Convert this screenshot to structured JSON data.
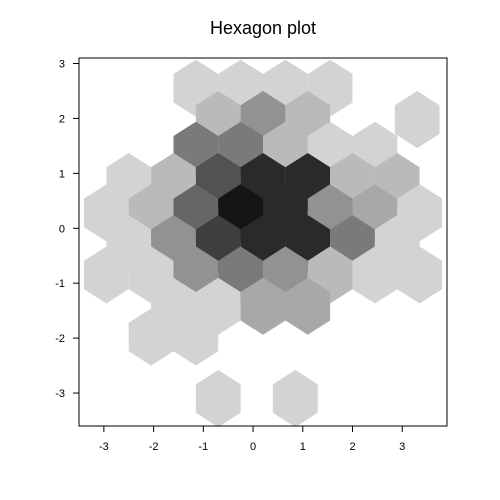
{
  "chart_data": {
    "type": "heatmap",
    "subtype": "hexbin",
    "title": "Hexagon plot",
    "xlabel": "",
    "ylabel": "",
    "xlim": [
      -3.5,
      3.9
    ],
    "ylim": [
      -3.6,
      3.1
    ],
    "x_ticks": [
      -3,
      -2,
      -1,
      0,
      1,
      2,
      3
    ],
    "y_ticks": [
      -3,
      -2,
      -1,
      0,
      1,
      2,
      3
    ],
    "grid": false,
    "legend": "none",
    "hex_width": 0.9,
    "colors": [
      "#d3d3d3",
      "#bababa",
      "#a8a8a8",
      "#929292",
      "#7a7a7a",
      "#666666",
      "#525252",
      "#3e3e3e",
      "#2a2a2a",
      "#151515"
    ],
    "cells": [
      {
        "x": -1.15,
        "y": 2.55,
        "level": 0
      },
      {
        "x": -0.25,
        "y": 2.55,
        "level": 0
      },
      {
        "x": 0.65,
        "y": 2.55,
        "level": 0
      },
      {
        "x": 1.55,
        "y": 2.55,
        "level": 0
      },
      {
        "x": -0.7,
        "y": 1.98,
        "level": 1
      },
      {
        "x": 0.2,
        "y": 1.98,
        "level": 3
      },
      {
        "x": 1.1,
        "y": 1.98,
        "level": 1
      },
      {
        "x": 3.3,
        "y": 1.98,
        "level": 0
      },
      {
        "x": -1.15,
        "y": 1.42,
        "level": 4
      },
      {
        "x": -0.25,
        "y": 1.42,
        "level": 4
      },
      {
        "x": 0.65,
        "y": 1.42,
        "level": 1
      },
      {
        "x": 1.55,
        "y": 1.42,
        "level": 0
      },
      {
        "x": 2.45,
        "y": 1.42,
        "level": 0
      },
      {
        "x": -2.5,
        "y": 0.85,
        "level": 0
      },
      {
        "x": -1.6,
        "y": 0.85,
        "level": 1
      },
      {
        "x": -0.7,
        "y": 0.85,
        "level": 6
      },
      {
        "x": 0.2,
        "y": 0.85,
        "level": 8
      },
      {
        "x": 1.1,
        "y": 0.85,
        "level": 8
      },
      {
        "x": 2.0,
        "y": 0.85,
        "level": 1
      },
      {
        "x": 2.9,
        "y": 0.85,
        "level": 1
      },
      {
        "x": -2.95,
        "y": 0.28,
        "level": 0
      },
      {
        "x": -2.05,
        "y": 0.28,
        "level": 1
      },
      {
        "x": -1.15,
        "y": 0.28,
        "level": 5
      },
      {
        "x": -0.25,
        "y": 0.28,
        "level": 9
      },
      {
        "x": 0.65,
        "y": 0.28,
        "level": 8
      },
      {
        "x": 1.55,
        "y": 0.28,
        "level": 3
      },
      {
        "x": 2.45,
        "y": 0.28,
        "level": 2
      },
      {
        "x": 3.35,
        "y": 0.28,
        "level": 0
      },
      {
        "x": -2.5,
        "y": -0.28,
        "level": 0
      },
      {
        "x": -1.6,
        "y": -0.28,
        "level": 3
      },
      {
        "x": -0.7,
        "y": -0.28,
        "level": 7
      },
      {
        "x": 0.2,
        "y": -0.28,
        "level": 8
      },
      {
        "x": 1.1,
        "y": -0.28,
        "level": 8
      },
      {
        "x": 2.0,
        "y": -0.28,
        "level": 4
      },
      {
        "x": 2.9,
        "y": -0.28,
        "level": 0
      },
      {
        "x": -2.95,
        "y": -0.85,
        "level": 0
      },
      {
        "x": -2.05,
        "y": -0.85,
        "level": 0
      },
      {
        "x": -1.15,
        "y": -0.85,
        "level": 3
      },
      {
        "x": -0.25,
        "y": -0.85,
        "level": 4
      },
      {
        "x": 0.65,
        "y": -0.85,
        "level": 3
      },
      {
        "x": 1.55,
        "y": -0.85,
        "level": 1
      },
      {
        "x": 2.45,
        "y": -0.85,
        "level": 0
      },
      {
        "x": 3.35,
        "y": -0.85,
        "level": 0
      },
      {
        "x": -1.6,
        "y": -1.42,
        "level": 0
      },
      {
        "x": -0.7,
        "y": -1.42,
        "level": 0
      },
      {
        "x": 0.2,
        "y": -1.42,
        "level": 2
      },
      {
        "x": 1.1,
        "y": -1.42,
        "level": 2
      },
      {
        "x": -2.05,
        "y": -1.98,
        "level": 0
      },
      {
        "x": -1.15,
        "y": -1.98,
        "level": 0
      },
      {
        "x": -0.7,
        "y": -3.1,
        "level": 0
      },
      {
        "x": 0.85,
        "y": -3.1,
        "level": 0
      }
    ]
  }
}
